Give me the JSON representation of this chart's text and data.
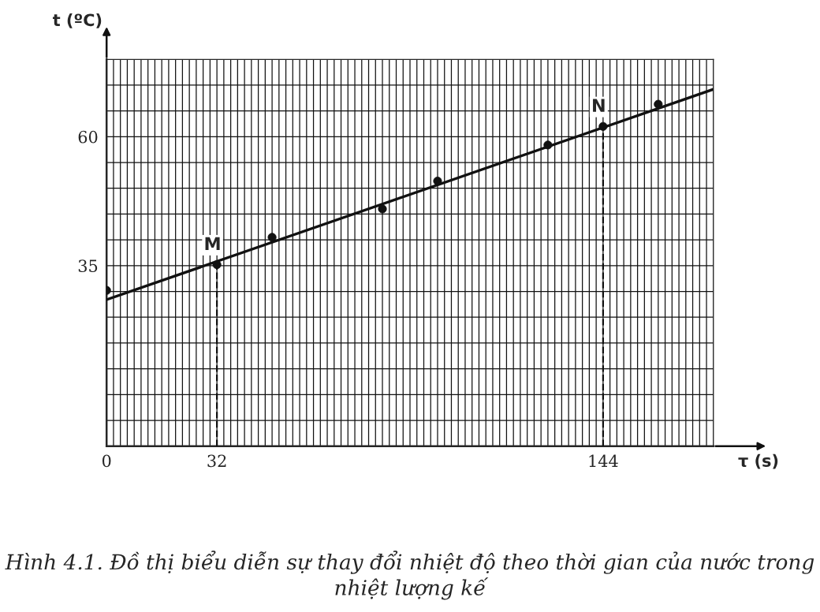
{
  "chart_data": {
    "type": "scatter",
    "xlabel": "τ (s)",
    "ylabel": "t (ºC)",
    "xlim": [
      0,
      176
    ],
    "ylim": [
      0,
      75
    ],
    "xticks": [
      0,
      {
        "value": 2,
        "label": null
      },
      {
        "value": 4,
        "label": null
      },
      {
        "value": 6,
        "label": null
      },
      {
        "value": 8,
        "label": null
      },
      {
        "value": 10,
        "label": null
      },
      {
        "value": 12,
        "label": null
      },
      {
        "value": 14,
        "label": null
      },
      {
        "value": 16,
        "label": null
      },
      {
        "value": 18,
        "label": null
      },
      {
        "value": 20,
        "label": null
      },
      {
        "value": 22,
        "label": null
      },
      {
        "value": 24,
        "label": null
      },
      {
        "value": 26,
        "label": null
      },
      {
        "value": 28,
        "label": null
      },
      {
        "value": 30,
        "label": null
      },
      32,
      {
        "value": 34,
        "label": null
      },
      {
        "value": 36,
        "label": null
      },
      {
        "value": 38,
        "label": null
      },
      {
        "value": 40,
        "label": null
      },
      {
        "value": 42,
        "label": null
      },
      {
        "value": 44,
        "label": null
      },
      {
        "value": 46,
        "label": null
      },
      {
        "value": 48,
        "label": null
      },
      {
        "value": 50,
        "label": null
      },
      {
        "value": 52,
        "label": null
      },
      {
        "value": 54,
        "label": null
      },
      {
        "value": 56,
        "label": null
      },
      {
        "value": 58,
        "label": null
      },
      {
        "value": 60,
        "label": null
      },
      {
        "value": 62,
        "label": null
      },
      {
        "value": 64,
        "label": null
      },
      {
        "value": 66,
        "label": null
      },
      {
        "value": 68,
        "label": null
      },
      {
        "value": 70,
        "label": null
      },
      {
        "value": 72,
        "label": null
      },
      {
        "value": 74,
        "label": null
      },
      {
        "value": 76,
        "label": null
      },
      {
        "value": 78,
        "label": null
      },
      {
        "value": 80,
        "label": null
      },
      {
        "value": 82,
        "label": null
      },
      {
        "value": 84,
        "label": null
      },
      {
        "value": 86,
        "label": null
      },
      {
        "value": 88,
        "label": null
      },
      {
        "value": 90,
        "label": null
      },
      {
        "value": 92,
        "label": null
      },
      {
        "value": 94,
        "label": null
      },
      {
        "value": 96,
        "label": null
      },
      {
        "value": 98,
        "label": null
      },
      {
        "value": 100,
        "label": null
      },
      {
        "value": 102,
        "label": null
      },
      {
        "value": 104,
        "label": null
      },
      {
        "value": 106,
        "label": null
      },
      {
        "value": 108,
        "label": null
      },
      {
        "value": 110,
        "label": null
      },
      {
        "value": 112,
        "label": null
      },
      {
        "value": 114,
        "label": null
      },
      {
        "value": 116,
        "label": null
      },
      {
        "value": 118,
        "label": null
      },
      {
        "value": 120,
        "label": null
      },
      {
        "value": 122,
        "label": null
      },
      {
        "value": 124,
        "label": null
      },
      {
        "value": 126,
        "label": null
      },
      {
        "value": 128,
        "label": null
      },
      {
        "value": 130,
        "label": null
      },
      {
        "value": 132,
        "label": null
      },
      {
        "value": 134,
        "label": null
      },
      {
        "value": 136,
        "label": null
      },
      {
        "value": 138,
        "label": null
      },
      {
        "value": 140,
        "label": null
      },
      {
        "value": 142,
        "label": null
      },
      144,
      {
        "value": 146,
        "label": null
      },
      {
        "value": 148,
        "label": null
      },
      {
        "value": 150,
        "label": null
      },
      {
        "value": 152,
        "label": null
      },
      {
        "value": 154,
        "label": null
      },
      {
        "value": 156,
        "label": null
      },
      {
        "value": 158,
        "label": null
      },
      {
        "value": 160,
        "label": null
      },
      {
        "value": 162,
        "label": null
      },
      {
        "value": 164,
        "label": null
      },
      {
        "value": 166,
        "label": null
      },
      {
        "value": 168,
        "label": null
      },
      {
        "value": 170,
        "label": null
      },
      {
        "value": 172,
        "label": null
      },
      {
        "value": 174,
        "label": null
      },
      {
        "value": 176,
        "label": null
      }
    ],
    "yticks": [
      {
        "value": 0,
        "label": null
      },
      {
        "value": 5,
        "label": null
      },
      {
        "value": 10,
        "label": null
      },
      {
        "value": 15,
        "label": null
      },
      {
        "value": 20,
        "label": null
      },
      {
        "value": 25,
        "label": null
      },
      {
        "value": 30,
        "label": null
      },
      35,
      {
        "value": 40,
        "label": null
      },
      {
        "value": 45,
        "label": null
      },
      {
        "value": 50,
        "label": null
      },
      {
        "value": 55,
        "label": null
      },
      60,
      {
        "value": 65,
        "label": null
      },
      {
        "value": 70,
        "label": null
      },
      {
        "value": 75,
        "label": null
      }
    ],
    "grid": true,
    "series": [
      {
        "marker": "circle",
        "color": "#111111",
        "x": [
          0,
          32,
          48,
          80,
          96,
          128,
          144,
          160
        ],
        "values": [
          30.2,
          35.2,
          40.5,
          46,
          51.4,
          58.4,
          62,
          66.3
        ]
      },
      {
        "type": "line",
        "marker": "none",
        "color": "#111111",
        "line_style": "solid",
        "x": [
          0,
          176
        ],
        "values": [
          28.4,
          69.2
        ]
      }
    ],
    "ref_lines": [
      {
        "axis": "x",
        "value": 32,
        "line_style": "dashed",
        "color": "#111111"
      },
      {
        "axis": "x",
        "value": 144,
        "line_style": "dashed",
        "color": "#111111"
      }
    ],
    "annotations": [
      {
        "text": "M",
        "x": 32,
        "y": 35.2
      },
      {
        "text": "N",
        "x": 144,
        "y": 62
      },
      "Hình 4.1. Đồ thị biểu diễn sự thay đổi nhiệt độ theo thời gian của nước trong nhiệt lượng kế"
    ]
  }
}
